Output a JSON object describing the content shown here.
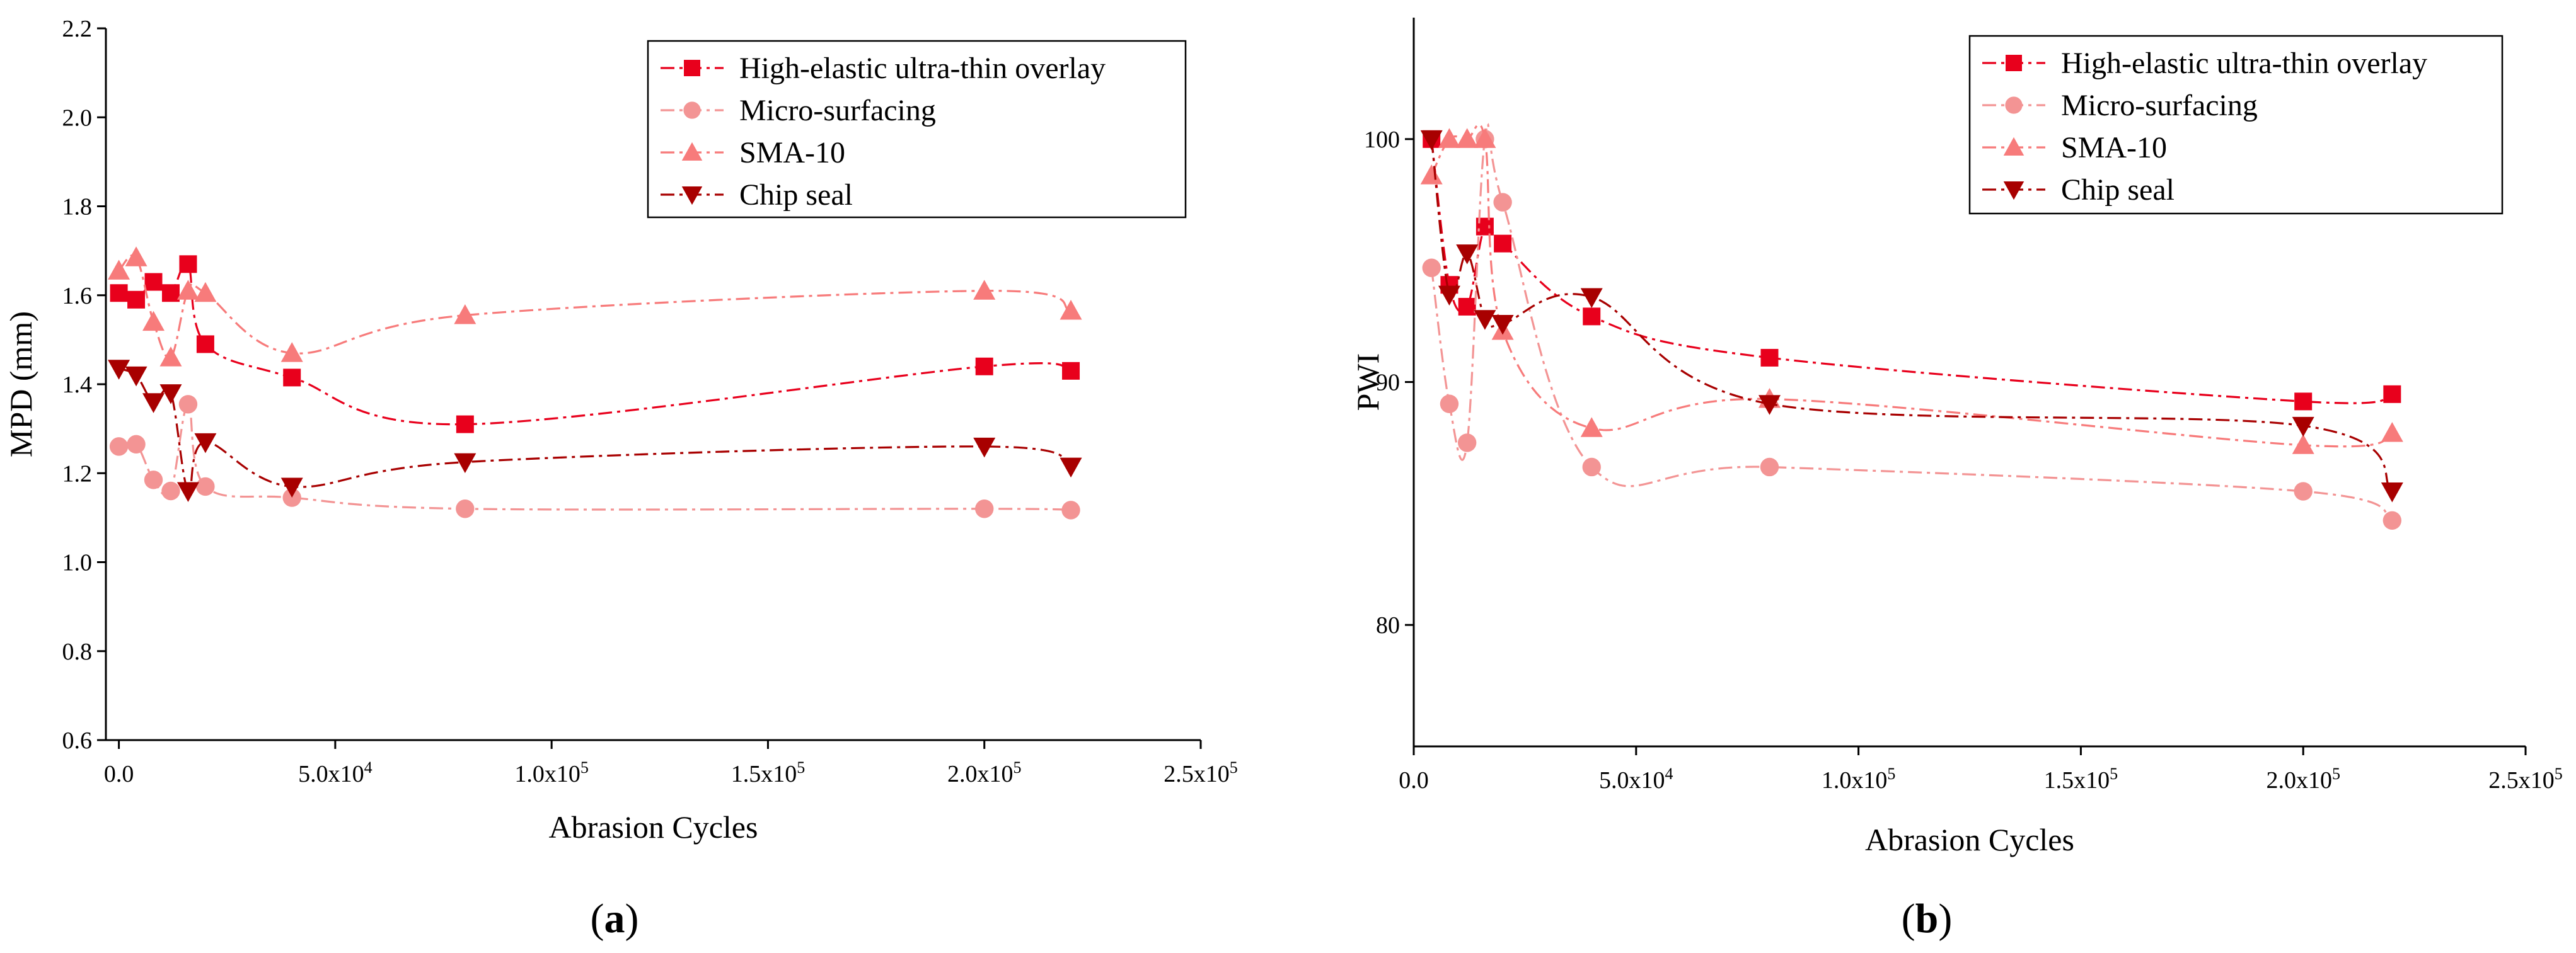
{
  "chart_data": [
    {
      "type": "line",
      "panel": "a",
      "panel_label": "a",
      "title": "",
      "xlabel": "Abrasion Cycles",
      "ylabel": "MPD (mm)",
      "xlim": [
        -3000,
        250000
      ],
      "ylim": [
        0.6,
        2.2
      ],
      "xticks": [
        0,
        50000,
        100000,
        150000,
        200000,
        250000
      ],
      "xtick_labels": [
        "0.0",
        "5.0x10",
        "1.0x10",
        "1.5x10",
        "2.0x10",
        "2.5x10"
      ],
      "xtick_exponents": [
        "",
        "4",
        "5",
        "5",
        "5",
        "5"
      ],
      "yticks": [
        0.6,
        0.8,
        1.0,
        1.2,
        1.4,
        1.6,
        1.8,
        2.0,
        2.2
      ],
      "ytick_labels": [
        "0.6",
        "0.8",
        "1.0",
        "1.2",
        "1.4",
        "1.6",
        "1.8",
        "2.0",
        "2.2"
      ],
      "legend_position": "top-right",
      "series": [
        {
          "name": "High-elastic ultra-thin overlay",
          "marker": "square",
          "color": "#e8001c",
          "x": [
            0,
            4000,
            8000,
            12000,
            16000,
            20000,
            40000,
            80000,
            200000,
            220000
          ],
          "y": [
            1.605,
            1.59,
            1.63,
            1.605,
            1.67,
            1.49,
            1.415,
            1.31,
            1.44,
            1.43
          ]
        },
        {
          "name": "Micro-surfacing",
          "marker": "circle",
          "color": "#f39494",
          "x": [
            0,
            4000,
            8000,
            12000,
            16000,
            20000,
            40000,
            80000,
            200000,
            220000
          ],
          "y": [
            1.26,
            1.265,
            1.185,
            1.16,
            1.355,
            1.17,
            1.145,
            1.12,
            1.12,
            1.117
          ]
        },
        {
          "name": "SMA-10",
          "marker": "triangle-up",
          "color": "#f77b7b",
          "x": [
            0,
            4000,
            8000,
            12000,
            16000,
            20000,
            40000,
            80000,
            200000,
            220000
          ],
          "y": [
            1.655,
            1.685,
            1.54,
            1.46,
            1.61,
            1.605,
            1.47,
            1.555,
            1.61,
            1.565
          ]
        },
        {
          "name": "Chip seal",
          "marker": "triangle-down",
          "color": "#a80000",
          "x": [
            0,
            4000,
            8000,
            12000,
            16000,
            20000,
            40000,
            80000,
            200000,
            220000
          ],
          "y": [
            1.435,
            1.42,
            1.36,
            1.38,
            1.16,
            1.27,
            1.17,
            1.225,
            1.26,
            1.215
          ]
        }
      ]
    },
    {
      "type": "line",
      "panel": "b",
      "panel_label": "b",
      "title": "",
      "xlabel": "Abrasion Cycles",
      "ylabel": "PWI",
      "xlim": [
        0,
        250000
      ],
      "ylim": [
        75,
        105
      ],
      "xticks": [
        0,
        50000,
        100000,
        150000,
        200000,
        250000
      ],
      "xtick_labels": [
        "0.0",
        "5.0x10",
        "1.0x10",
        "1.5x10",
        "2.0x10",
        "2.5x10"
      ],
      "xtick_exponents": [
        "",
        "4",
        "5",
        "5",
        "5",
        "5"
      ],
      "yticks": [
        80,
        90,
        100
      ],
      "ytick_labels": [
        "80",
        "90",
        "100"
      ],
      "legend_position": "top-right",
      "series": [
        {
          "name": "High-elastic ultra-thin overlay",
          "marker": "square",
          "color": "#e8001c",
          "x": [
            4000,
            8000,
            12000,
            16000,
            20000,
            40000,
            80000,
            200000,
            220000
          ],
          "y": [
            100,
            94,
            93.1,
            96.4,
            95.7,
            92.7,
            91,
            89.2,
            89.5
          ]
        },
        {
          "name": "Micro-surfacing",
          "marker": "circle",
          "color": "#f39494",
          "x": [
            4000,
            8000,
            12000,
            16000,
            20000,
            40000,
            80000,
            200000,
            220000
          ],
          "y": [
            94.7,
            89.1,
            87.5,
            100,
            97.4,
            86.5,
            86.5,
            85.5,
            84.3
          ]
        },
        {
          "name": "SMA-10",
          "marker": "triangle-up",
          "color": "#f77b7b",
          "x": [
            4000,
            8000,
            12000,
            16000,
            20000,
            40000,
            80000,
            200000,
            220000
          ],
          "y": [
            98.5,
            100,
            100,
            100,
            92.1,
            88.1,
            89.3,
            87.4,
            87.9
          ]
        },
        {
          "name": "Chip seal",
          "marker": "triangle-down",
          "color": "#a80000",
          "x": [
            4000,
            8000,
            12000,
            16000,
            20000,
            40000,
            80000,
            200000,
            220000
          ],
          "y": [
            100,
            93.6,
            95.3,
            92.6,
            92.4,
            93.5,
            89.1,
            88.2,
            85.5
          ]
        }
      ]
    }
  ]
}
